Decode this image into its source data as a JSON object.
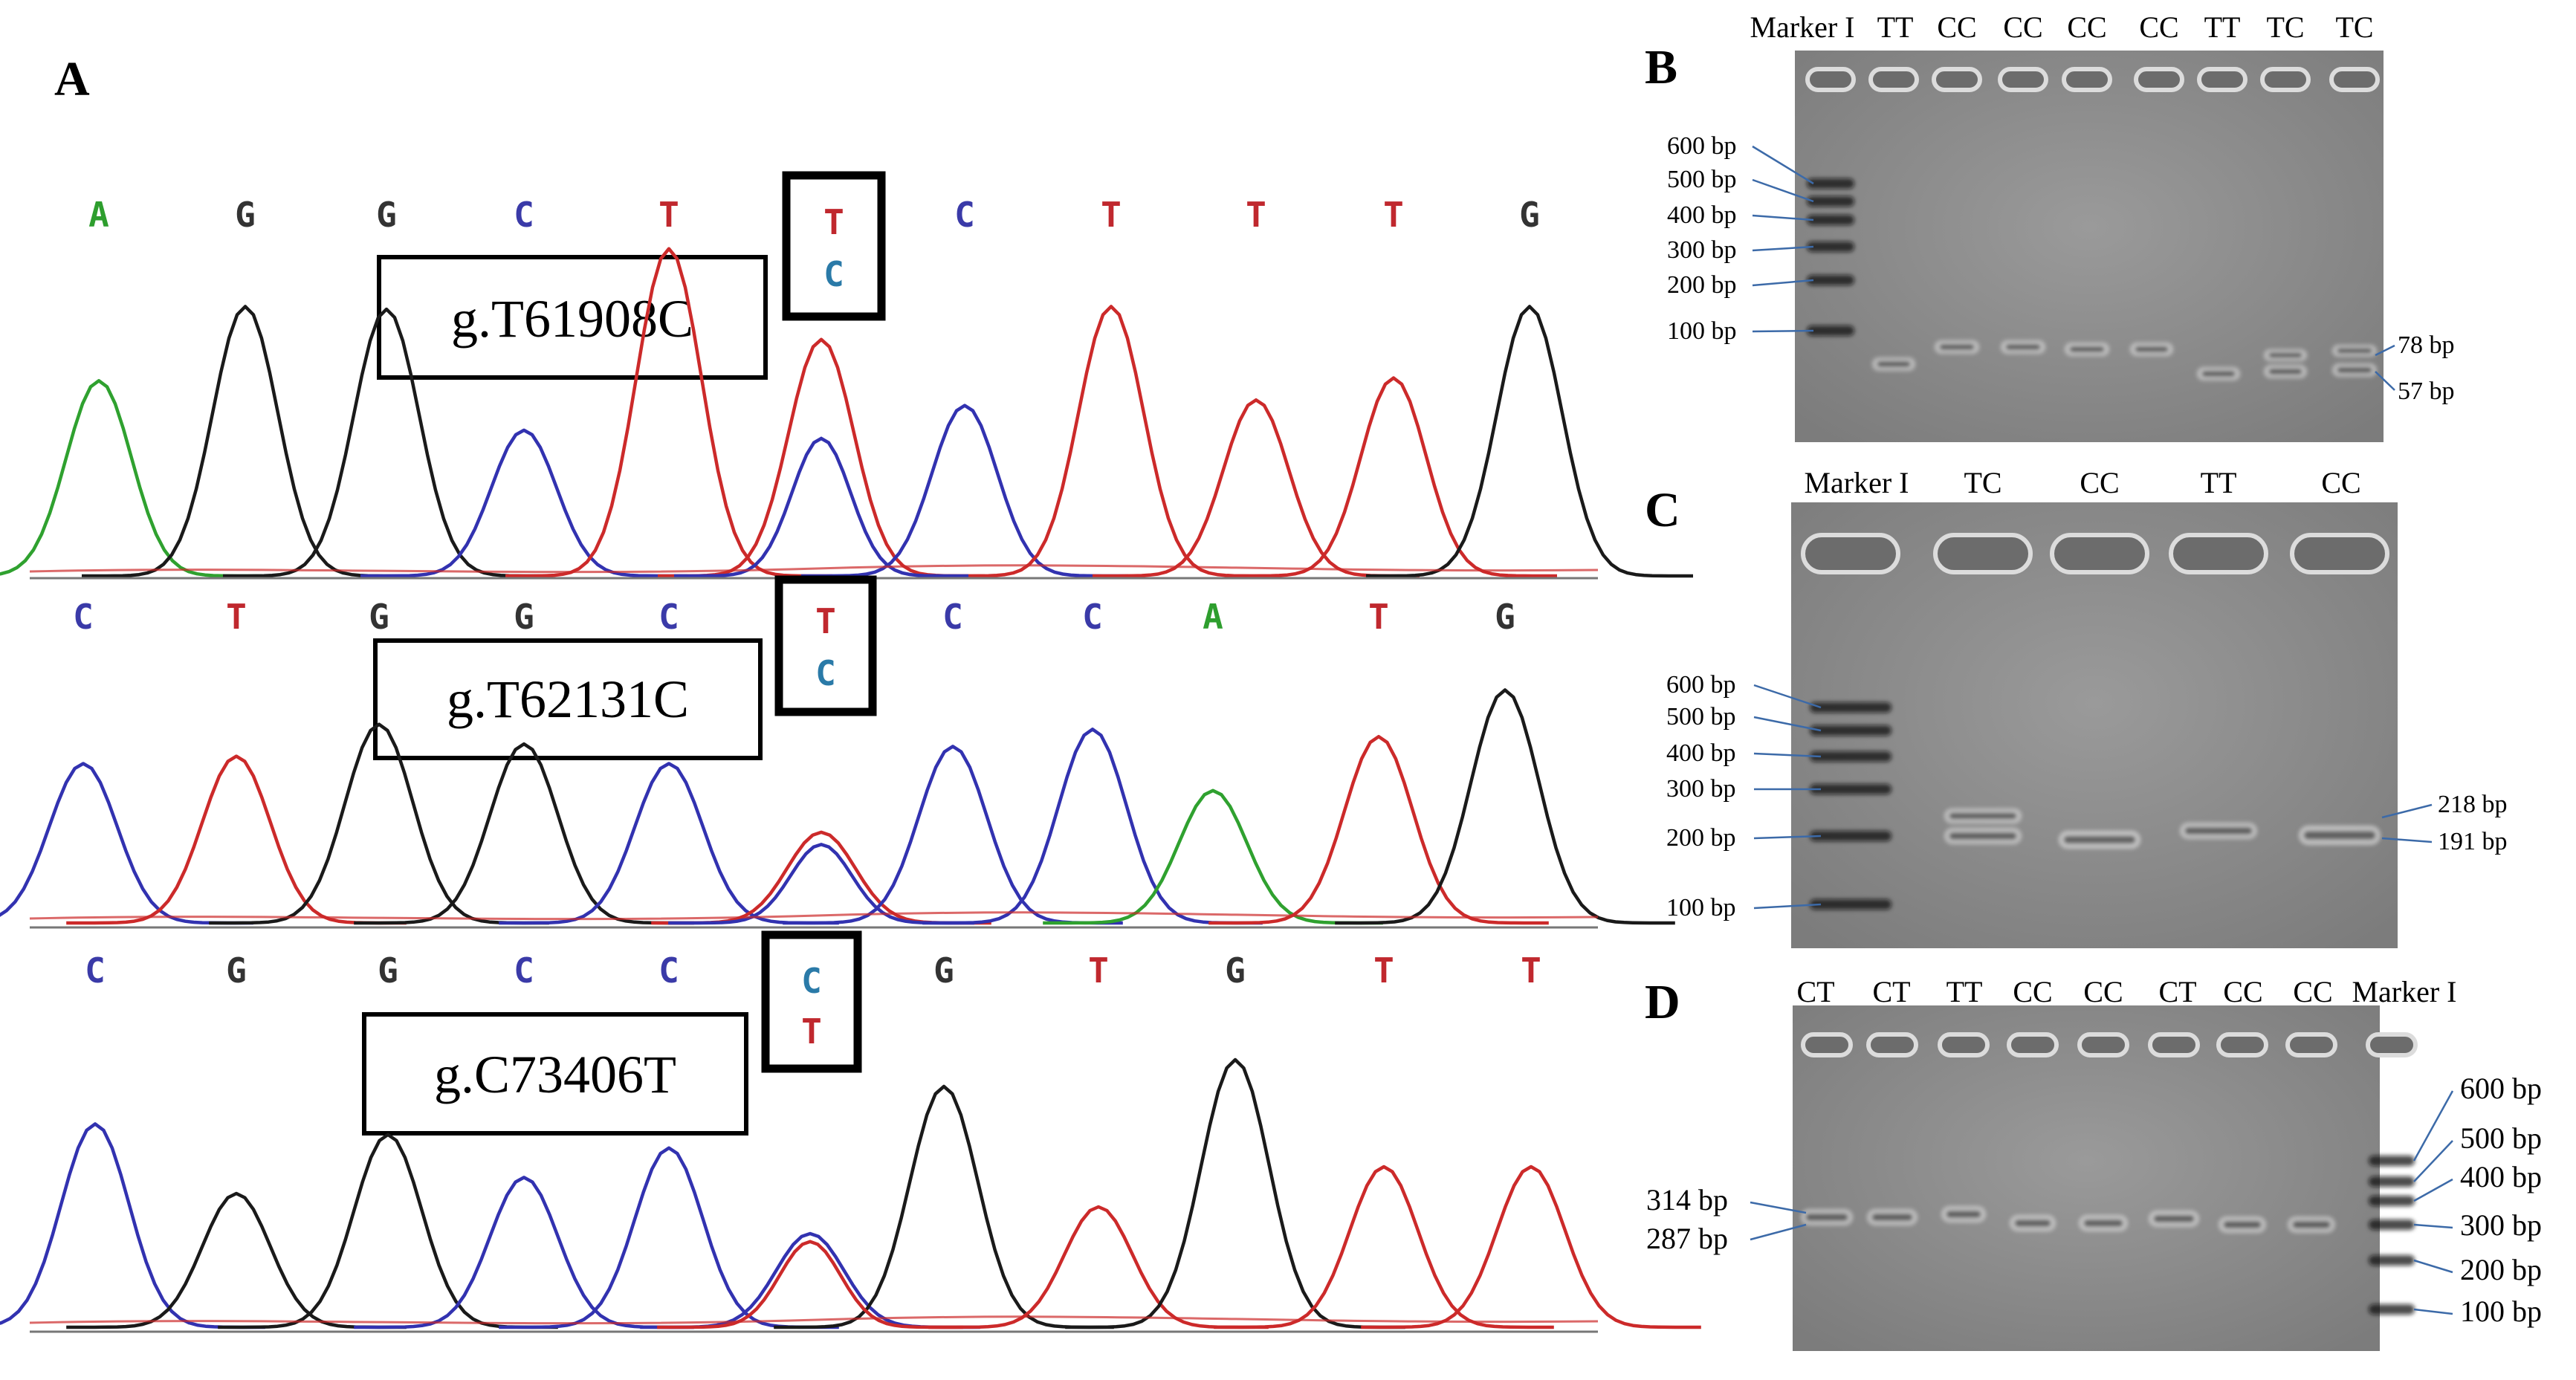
{
  "panels": {
    "A": {
      "label": "A",
      "tracks": [
        {
          "name": "g.T61908C",
          "bases": [
            "A",
            "G",
            "G",
            "C",
            "T",
            null,
            "C",
            "T",
            "T",
            "T",
            "G"
          ],
          "snp_top": "T",
          "snp_bottom": "C",
          "peaks": [
            {
              "color": "green",
              "height": 0.71
            },
            {
              "color": "black",
              "height": 0.98
            },
            {
              "color": "black",
              "height": 0.97
            },
            {
              "color": "blue",
              "height": 0.53
            },
            {
              "color": "red",
              "height": 1.19
            },
            {
              "color": "red",
              "height": 0.86
            },
            {
              "color": "blue",
              "height": 0.62
            },
            {
              "color": "red",
              "height": 0.98
            },
            {
              "color": "red",
              "height": 0.64
            },
            {
              "color": "red",
              "height": 0.72
            },
            {
              "color": "black",
              "height": 0.98
            }
          ],
          "snp_secondary": {
            "color": "blue",
            "height": 0.5
          }
        },
        {
          "name": "g.T62131C",
          "bases": [
            "C",
            "T",
            "G",
            "G",
            "C",
            null,
            "C",
            "C",
            "A",
            "T",
            "G"
          ],
          "snp_top": "T",
          "snp_bottom": "C",
          "peaks": [
            {
              "color": "blue",
              "height": 0.65
            },
            {
              "color": "red",
              "height": 0.68
            },
            {
              "color": "black",
              "height": 0.81
            },
            {
              "color": "black",
              "height": 0.73
            },
            {
              "color": "blue",
              "height": 0.65
            },
            {
              "color": "red",
              "height": 0.37
            },
            {
              "color": "blue",
              "height": 0.72
            },
            {
              "color": "blue",
              "height": 0.79
            },
            {
              "color": "green",
              "height": 0.54
            },
            {
              "color": "red",
              "height": 0.76
            },
            {
              "color": "black",
              "height": 0.95
            }
          ],
          "snp_secondary": {
            "color": "blue",
            "height": 0.32
          }
        },
        {
          "name": "g.C73406T",
          "bases": [
            "C",
            "G",
            "G",
            "C",
            "C",
            null,
            "G",
            "T",
            "G",
            "T",
            "T"
          ],
          "snp_top": "C",
          "snp_bottom": "T",
          "peaks": [
            {
              "color": "blue",
              "height": 0.76
            },
            {
              "color": "black",
              "height": 0.5
            },
            {
              "color": "black",
              "height": 0.72
            },
            {
              "color": "blue",
              "height": 0.56
            },
            {
              "color": "blue",
              "height": 0.67
            },
            {
              "color": "blue",
              "height": 0.35
            },
            {
              "color": "black",
              "height": 0.9
            },
            {
              "color": "red",
              "height": 0.45
            },
            {
              "color": "black",
              "height": 1.0
            },
            {
              "color": "red",
              "height": 0.6
            },
            {
              "color": "red",
              "height": 0.6
            }
          ],
          "snp_secondary": {
            "color": "red",
            "height": 0.32
          }
        }
      ]
    },
    "B": {
      "label": "B",
      "lanes": [
        "Marker I",
        "TT",
        "CC",
        "CC",
        "CC",
        "CC",
        "TT",
        "TC",
        "TC"
      ],
      "marker_labels": [
        "600 bp",
        "500 bp",
        "400 bp",
        "300 bp",
        "200 bp",
        "100 bp"
      ],
      "band_labels": [
        "78 bp",
        "57 bp"
      ]
    },
    "C": {
      "label": "C",
      "lanes": [
        "Marker I",
        "TC",
        "CC",
        "TT",
        "CC"
      ],
      "marker_labels": [
        "600 bp",
        "500 bp",
        "400 bp",
        "300 bp",
        "200 bp",
        "100 bp"
      ],
      "band_labels": [
        "218 bp",
        "191 bp"
      ]
    },
    "D": {
      "label": "D",
      "lanes": [
        "CT",
        "CT",
        "TT",
        "CC",
        "CC",
        "CT",
        "CC",
        "CC",
        "Marker I"
      ],
      "marker_labels": [
        "600 bp",
        "500 bp",
        "400 bp",
        "300 bp",
        "200 bp",
        "100 bp"
      ],
      "band_labels": [
        "314 bp",
        "287 bp"
      ]
    }
  },
  "colors": {
    "A": "#2e9e2e",
    "C": "#3a3aa8",
    "G": "#222222",
    "T": "#c0282e",
    "gel": "#8e8e8e",
    "leader": "#3c6aa8"
  }
}
